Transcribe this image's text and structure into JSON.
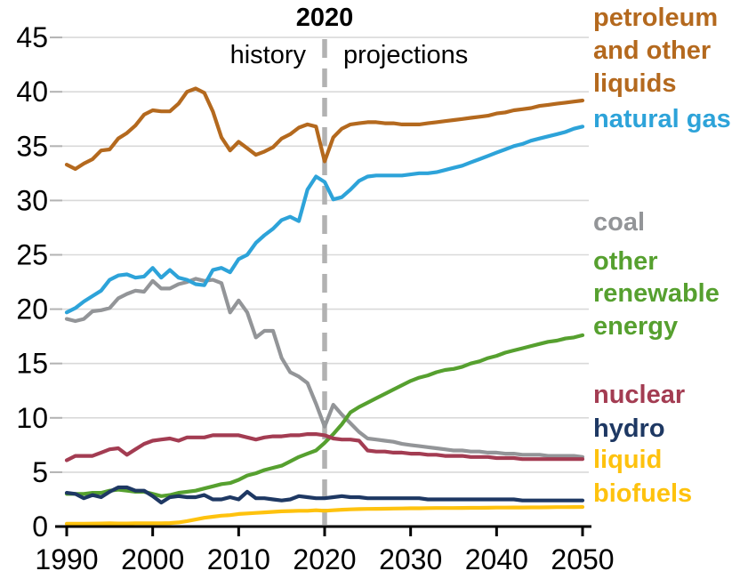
{
  "chart_data": {
    "type": "line",
    "title": "",
    "grid": "horizontal",
    "legend_position": "right",
    "divider": {
      "year": 2020,
      "year_label": "2020",
      "left_label": "history",
      "right_label": "projections",
      "line_color": "#b2b2b2"
    },
    "x_axis": {
      "min": 1990,
      "max": 2050,
      "tick_years": [
        1990,
        2000,
        2010,
        2020,
        2030,
        2040,
        2050
      ],
      "tick_labels": [
        "1990",
        "2000",
        "2010",
        "2020",
        "2030",
        "2040",
        "2050"
      ]
    },
    "y_axis": {
      "min": 0,
      "max": 45,
      "tick_step": 5,
      "tick_values": [
        0,
        5,
        10,
        15,
        20,
        25,
        30,
        35,
        40,
        45
      ],
      "tick_labels": [
        "0",
        "5",
        "10",
        "15",
        "20",
        "25",
        "30",
        "35",
        "40",
        "45"
      ]
    },
    "years": {
      "start": 1990,
      "end": 2050,
      "step": 1
    },
    "colors": {
      "gridline": "#d9d9d9",
      "tick": "#b3b3b3",
      "axis": "#000000"
    },
    "series": [
      {
        "key": "petroleum",
        "label": "petroleum and other liquids",
        "legend_lines": [
          "petroleum",
          "and other",
          "liquids"
        ],
        "color": "#b4691e",
        "values": [
          33.3,
          32.9,
          33.4,
          33.8,
          34.6,
          34.7,
          35.7,
          36.2,
          36.9,
          37.9,
          38.3,
          38.2,
          38.2,
          38.9,
          40.0,
          40.3,
          39.9,
          38.2,
          35.8,
          34.6,
          35.4,
          34.8,
          34.2,
          34.5,
          34.9,
          35.7,
          36.1,
          36.7,
          37.0,
          36.8,
          33.6,
          35.8,
          36.6,
          37.0,
          37.1,
          37.2,
          37.2,
          37.1,
          37.1,
          37.0,
          37.0,
          37.0,
          37.1,
          37.2,
          37.3,
          37.4,
          37.5,
          37.6,
          37.7,
          37.8,
          38.0,
          38.1,
          38.3,
          38.4,
          38.5,
          38.7,
          38.8,
          38.9,
          39.0,
          39.1,
          39.2
        ]
      },
      {
        "key": "natural-gas",
        "label": "natural gas",
        "legend_lines": [
          "natural gas"
        ],
        "color": "#2da3d9",
        "values": [
          19.7,
          20.1,
          20.7,
          21.2,
          21.7,
          22.7,
          23.1,
          23.2,
          22.9,
          23.0,
          23.8,
          22.9,
          23.6,
          22.9,
          22.7,
          22.3,
          22.2,
          23.6,
          23.8,
          23.4,
          24.6,
          25.0,
          26.1,
          26.8,
          27.4,
          28.2,
          28.5,
          28.1,
          31.0,
          32.2,
          31.7,
          30.1,
          30.3,
          31.0,
          31.8,
          32.2,
          32.3,
          32.3,
          32.3,
          32.3,
          32.4,
          32.5,
          32.5,
          32.6,
          32.8,
          33.0,
          33.2,
          33.5,
          33.8,
          34.1,
          34.4,
          34.7,
          35.0,
          35.2,
          35.5,
          35.7,
          35.9,
          36.1,
          36.3,
          36.6,
          36.8
        ]
      },
      {
        "key": "coal",
        "label": "coal",
        "legend_lines": [
          "coal"
        ],
        "color": "#939598",
        "values": [
          19.1,
          18.9,
          19.1,
          19.8,
          19.9,
          20.1,
          21.0,
          21.4,
          21.7,
          21.6,
          22.6,
          21.9,
          21.9,
          22.3,
          22.5,
          22.8,
          22.6,
          22.7,
          22.4,
          19.7,
          20.8,
          19.7,
          17.4,
          18.0,
          18.0,
          15.5,
          14.2,
          13.8,
          13.2,
          11.3,
          9.2,
          11.2,
          10.3,
          9.5,
          8.7,
          8.1,
          8.0,
          7.9,
          7.8,
          7.6,
          7.5,
          7.4,
          7.3,
          7.2,
          7.1,
          7.0,
          7.0,
          6.9,
          6.9,
          6.8,
          6.8,
          6.7,
          6.7,
          6.6,
          6.6,
          6.6,
          6.5,
          6.5,
          6.5,
          6.5,
          6.4
        ]
      },
      {
        "key": "other-renewables",
        "label": "other renewable energy",
        "legend_lines": [
          "other",
          "renewable",
          "energy"
        ],
        "color": "#56a02f",
        "values": [
          3.0,
          3.0,
          3.0,
          3.1,
          3.1,
          3.3,
          3.4,
          3.3,
          3.2,
          3.2,
          3.0,
          2.8,
          2.9,
          3.1,
          3.2,
          3.3,
          3.5,
          3.7,
          3.9,
          4.0,
          4.3,
          4.7,
          4.9,
          5.2,
          5.4,
          5.6,
          6.0,
          6.4,
          6.7,
          7.0,
          7.7,
          8.5,
          9.4,
          10.5,
          11.0,
          11.4,
          11.8,
          12.2,
          12.6,
          13.0,
          13.4,
          13.7,
          13.9,
          14.2,
          14.4,
          14.5,
          14.7,
          15.0,
          15.2,
          15.5,
          15.7,
          16.0,
          16.2,
          16.4,
          16.6,
          16.8,
          17.0,
          17.1,
          17.3,
          17.4,
          17.6
        ]
      },
      {
        "key": "nuclear",
        "label": "nuclear",
        "legend_lines": [
          "nuclear"
        ],
        "color": "#a33c52",
        "values": [
          6.1,
          6.5,
          6.5,
          6.5,
          6.8,
          7.1,
          7.2,
          6.6,
          7.1,
          7.6,
          7.9,
          8.0,
          8.1,
          7.9,
          8.2,
          8.2,
          8.2,
          8.4,
          8.4,
          8.4,
          8.4,
          8.2,
          8.0,
          8.2,
          8.3,
          8.3,
          8.4,
          8.4,
          8.5,
          8.5,
          8.4,
          8.1,
          8.0,
          8.0,
          7.9,
          7.0,
          6.9,
          6.9,
          6.8,
          6.8,
          6.7,
          6.7,
          6.6,
          6.6,
          6.5,
          6.5,
          6.5,
          6.4,
          6.4,
          6.4,
          6.3,
          6.3,
          6.3,
          6.2,
          6.2,
          6.2,
          6.2,
          6.2,
          6.2,
          6.2,
          6.2
        ]
      },
      {
        "key": "hydro",
        "label": "hydro",
        "legend_lines": [
          "hydro"
        ],
        "color": "#1e3863",
        "values": [
          3.1,
          3.0,
          2.6,
          2.9,
          2.7,
          3.2,
          3.6,
          3.6,
          3.3,
          3.3,
          2.8,
          2.2,
          2.7,
          2.8,
          2.7,
          2.7,
          2.9,
          2.5,
          2.5,
          2.7,
          2.5,
          3.2,
          2.6,
          2.6,
          2.5,
          2.4,
          2.5,
          2.8,
          2.7,
          2.6,
          2.6,
          2.7,
          2.8,
          2.7,
          2.7,
          2.6,
          2.6,
          2.6,
          2.6,
          2.6,
          2.6,
          2.6,
          2.5,
          2.5,
          2.5,
          2.5,
          2.5,
          2.5,
          2.5,
          2.5,
          2.5,
          2.5,
          2.5,
          2.4,
          2.4,
          2.4,
          2.4,
          2.4,
          2.4,
          2.4,
          2.4
        ]
      },
      {
        "key": "liquid-biofuels",
        "label": "liquid biofuels",
        "legend_lines": [
          "liquid",
          "biofuels"
        ],
        "color": "#fec20e",
        "values": [
          0.25,
          0.25,
          0.25,
          0.27,
          0.28,
          0.3,
          0.28,
          0.28,
          0.3,
          0.3,
          0.3,
          0.3,
          0.32,
          0.38,
          0.5,
          0.65,
          0.8,
          0.9,
          1.0,
          1.05,
          1.15,
          1.2,
          1.25,
          1.3,
          1.35,
          1.4,
          1.42,
          1.45,
          1.45,
          1.5,
          1.45,
          1.5,
          1.55,
          1.58,
          1.6,
          1.62,
          1.63,
          1.64,
          1.65,
          1.66,
          1.68,
          1.68,
          1.69,
          1.7,
          1.7,
          1.7,
          1.71,
          1.72,
          1.72,
          1.73,
          1.74,
          1.74,
          1.75,
          1.75,
          1.76,
          1.76,
          1.77,
          1.78,
          1.78,
          1.79,
          1.8
        ]
      }
    ]
  }
}
